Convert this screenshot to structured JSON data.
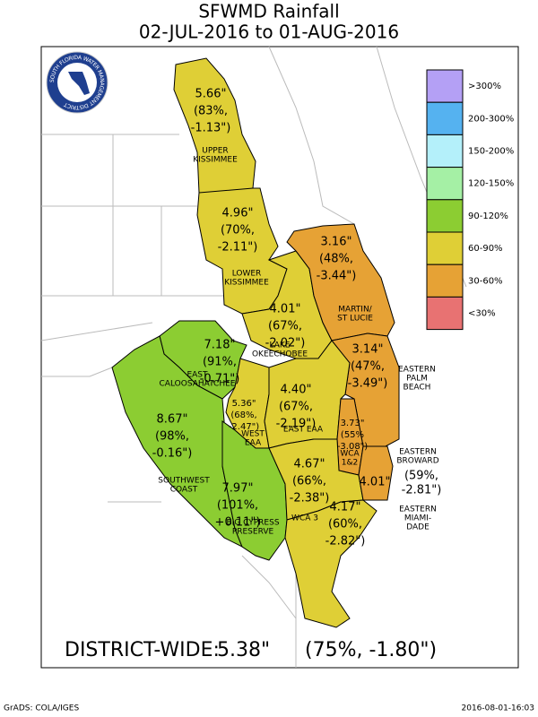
{
  "header": {
    "title": "SFWMD Rainfall",
    "subtitle": "02-JUL-2016 to 01-AUG-2016"
  },
  "logo": "SOUTH FLORIDA WATER MANAGEMENT DISTRICT",
  "legend": [
    {
      "label": ">300%",
      "color": "#b4a0f5"
    },
    {
      "label": "200-300%",
      "color": "#55b2f0"
    },
    {
      "label": "150-200%",
      "color": "#b4f0fa"
    },
    {
      "label": "120-150%",
      "color": "#a5f0a5"
    },
    {
      "label": "90-120%",
      "color": "#8ccd32"
    },
    {
      "label": "60-90%",
      "color": "#dfcf36"
    },
    {
      "label": "30-60%",
      "color": "#e6a235"
    },
    {
      "label": "<30%",
      "color": "#e87272"
    }
  ],
  "regions": [
    {
      "name": [
        "UPPER",
        "KISSIMMEE"
      ],
      "rainfall": "5.66\"",
      "percent": "(83%,",
      "departure": "-1.13\")",
      "color": "#dfcf36"
    },
    {
      "name": [
        "LOWER",
        "KISSIMMEE"
      ],
      "rainfall": "4.96\"",
      "percent": "(70%,",
      "departure": "-2.11\")",
      "color": "#dfcf36"
    },
    {
      "name": [
        "LAKE",
        "OKEECHOBEE"
      ],
      "rainfall": "4.01\"",
      "percent": "(67%,",
      "departure": "-2.02\")",
      "color": "#dfcf36"
    },
    {
      "name": [
        "MARTIN/",
        "ST LUCIE"
      ],
      "rainfall": "3.16\"",
      "percent": "(48%,",
      "departure": "-3.44\")",
      "color": "#e6a235"
    },
    {
      "name": [
        "EAST",
        "CALOOSAHATCHEE"
      ],
      "rainfall": "7.18\"",
      "percent": "(91%,",
      "departure": "-0.71\")",
      "color": "#8ccd32"
    },
    {
      "name": [
        "EASTERN",
        "PALM",
        "BEACH"
      ],
      "rainfall": "3.14\"",
      "percent": "(47%,",
      "departure": "-3.49\")",
      "color": "#e6a235"
    },
    {
      "name": [
        "WEST",
        "EAA"
      ],
      "rainfall": "5.36\"",
      "percent": "(68%,",
      "departure": "-2.47\")",
      "color": "#dfcf36"
    },
    {
      "name": [
        "EAST EAA"
      ],
      "rainfall": "4.40\"",
      "percent": "(67%,",
      "departure": "-2.19\")",
      "color": "#dfcf36"
    },
    {
      "name": [
        "WCA",
        "1&2"
      ],
      "rainfall": "3.73\"",
      "percent": "(55%",
      "departure": "-3.08\")",
      "color": "#e6a235"
    },
    {
      "name": [
        "SOUTHWEST",
        "COAST"
      ],
      "rainfall": "8.67\"",
      "percent": "(98%,",
      "departure": "-0.16\")",
      "color": "#8ccd32"
    },
    {
      "name": [
        "BIG CYPRESS",
        "PRESERVE"
      ],
      "rainfall": "7.97\"",
      "percent": "(101%,",
      "departure": "+0.11\")",
      "color": "#8ccd32"
    },
    {
      "name": [
        "WCA 3"
      ],
      "rainfall": "4.67\"",
      "percent": "(66%,",
      "departure": "-2.38\")",
      "color": "#dfcf36"
    },
    {
      "name": [
        "EASTERN",
        "BROWARD"
      ],
      "rainfall": "4.01\"",
      "percent": "(59%,",
      "departure": "-2.81\")",
      "color": "#e6a235"
    },
    {
      "name": [
        "EASTERN",
        "MIAMI-",
        "DADE"
      ],
      "rainfall": "4.17\"",
      "percent": "(60%,",
      "departure": "-2.82\")",
      "color": "#dfcf36"
    }
  ],
  "summary": {
    "label": "DISTRICT-WIDE:",
    "rainfall": "5.38\"",
    "detail": "(75%, -1.80\")"
  },
  "footer": {
    "left": "GrADS: COLA/IGES",
    "right": "2016-08-01-16:03"
  }
}
